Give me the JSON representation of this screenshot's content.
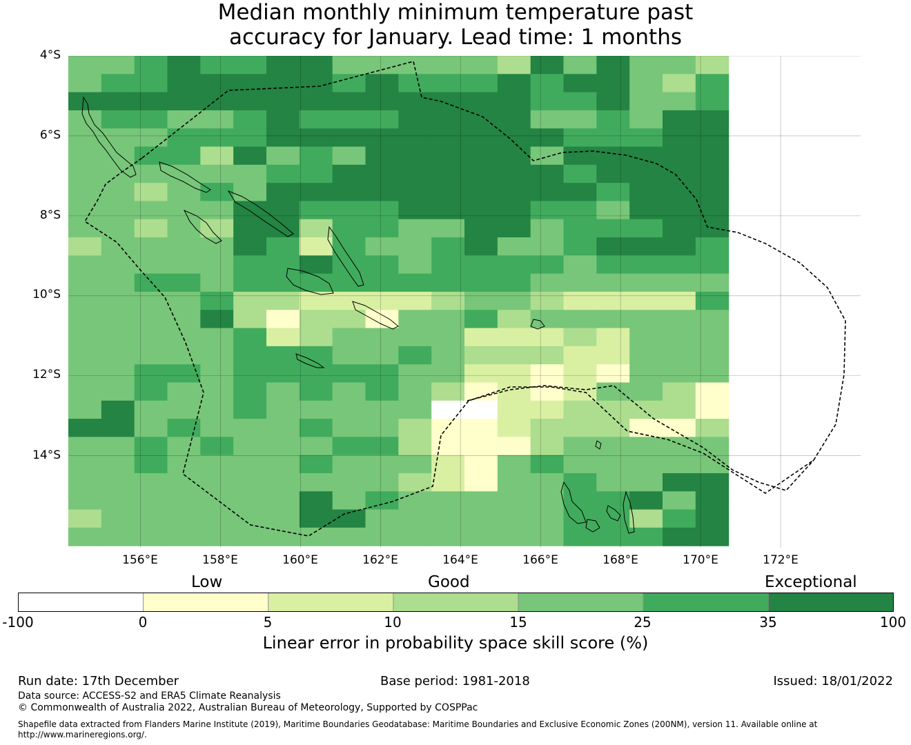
{
  "title_line1": "Median monthly minimum temperature past",
  "title_line2": "accuracy for January. Lead time: 1 months",
  "map": {
    "lat_labels": [
      "4°S",
      "6°S",
      "8°S",
      "10°S",
      "12°S",
      "14°S"
    ],
    "lon_labels": [
      "156°E",
      "158°E",
      "160°E",
      "162°E",
      "164°E",
      "166°E",
      "168°E",
      "170°E",
      "172°E"
    ],
    "bounds": {
      "lon_min": 154.2,
      "lon_max": 174.0,
      "lat_max": -4.0,
      "lat_min": -16.3
    },
    "grid_cells": {
      "lon_start": 154.2,
      "lat_start": -4.0,
      "cell_deg": 0.825,
      "rows": [
        "44565566444443646443",
        "45566666565556566435",
        "66666666666666556445",
        "45544565556666445466",
        "44455566666666655566",
        "44553645466666466666",
        "44444455666666656666",
        "44345466666666665666",
        "44444665556666554666",
        "44343663554466455566",
        "34444652544564456665",
        "44444556554555545555",
        "44554555555555444444",
        "44445332222344322225",
        "44446313314453444444",
        "44444523444422232444",
        "44444555445433322444",
        "44554555554422121444",
        "44544545454312124431",
        "46444544444002233331",
        "66454445443112333113",
        "44545444553111344444",
        "44544445444214544444",
        "44444444443214454466",
        "44444446454444455646",
        "34444446644444455356",
        "44444444444444455566"
      ]
    }
  },
  "colorbar": {
    "section_labels": [
      "Low",
      "Good",
      "Exceptional"
    ],
    "ticks": [
      "-100",
      "0",
      "5",
      "10",
      "15",
      "25",
      "35",
      "100"
    ],
    "colors": [
      "#ffffff",
      "#ffffcc",
      "#d9f0a3",
      "#addd8e",
      "#78c679",
      "#41ab5d",
      "#238443"
    ],
    "title": "Linear error in probability space skill score (%)"
  },
  "footer": {
    "run_date": "Run date: 17th December",
    "base_period": "Base period: 1981-2018",
    "issued": "Issued: 18/01/2022",
    "data_source": "Data source: ACCESS-S2 and ERA5 Climate Reanalysis",
    "copyright": "© Commonwealth of Australia 2022, Australian Bureau of Meteorology, Supported by COSPPac",
    "shapefile_line1": "Shapefile data extracted from Flanders Marine Institute (2019), Maritime Boundaries Geodatabase: Maritime Boundaries and Exclusive Economic Zones (200NM), version 11. Available online at",
    "shapefile_line2": "http://www.marineregions.org/."
  }
}
